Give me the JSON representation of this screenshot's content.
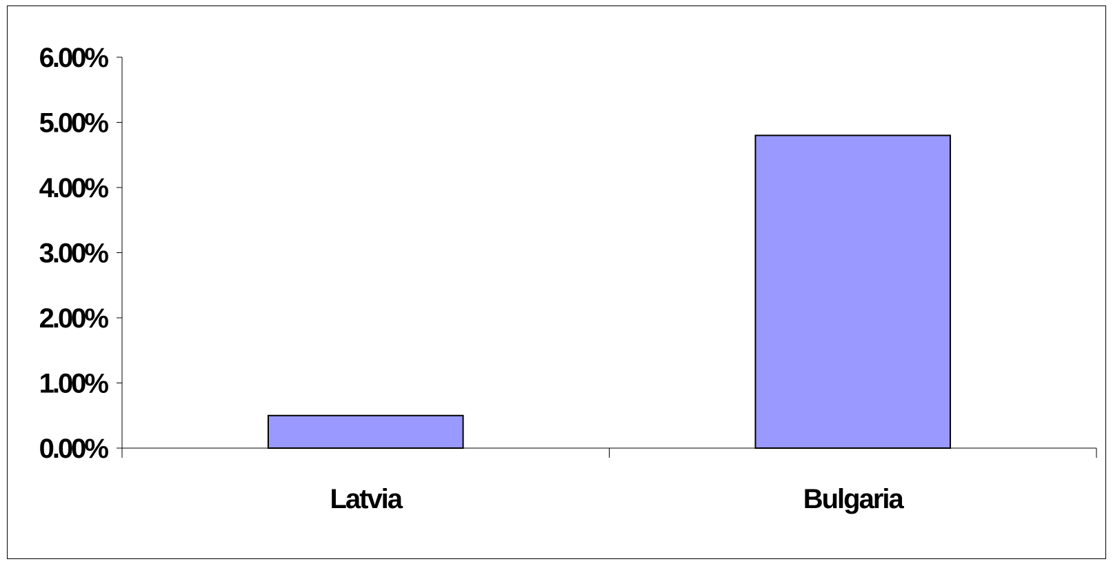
{
  "chart_data": {
    "type": "bar",
    "categories": [
      "Latvia",
      "Bulgaria"
    ],
    "values": [
      0.5,
      4.8
    ],
    "ylim": [
      0,
      6
    ],
    "yticks": [
      0,
      1,
      2,
      3,
      4,
      5,
      6
    ],
    "ytick_labels": [
      "0.00%",
      "1.00%",
      "2.00%",
      "3.00%",
      "4.00%",
      "5.00%",
      "6.00%"
    ],
    "bar_color": "#9999ff",
    "bar_stroke": "#000000",
    "grid": false,
    "legend": "none",
    "title": "",
    "xlabel": "",
    "ylabel": ""
  }
}
